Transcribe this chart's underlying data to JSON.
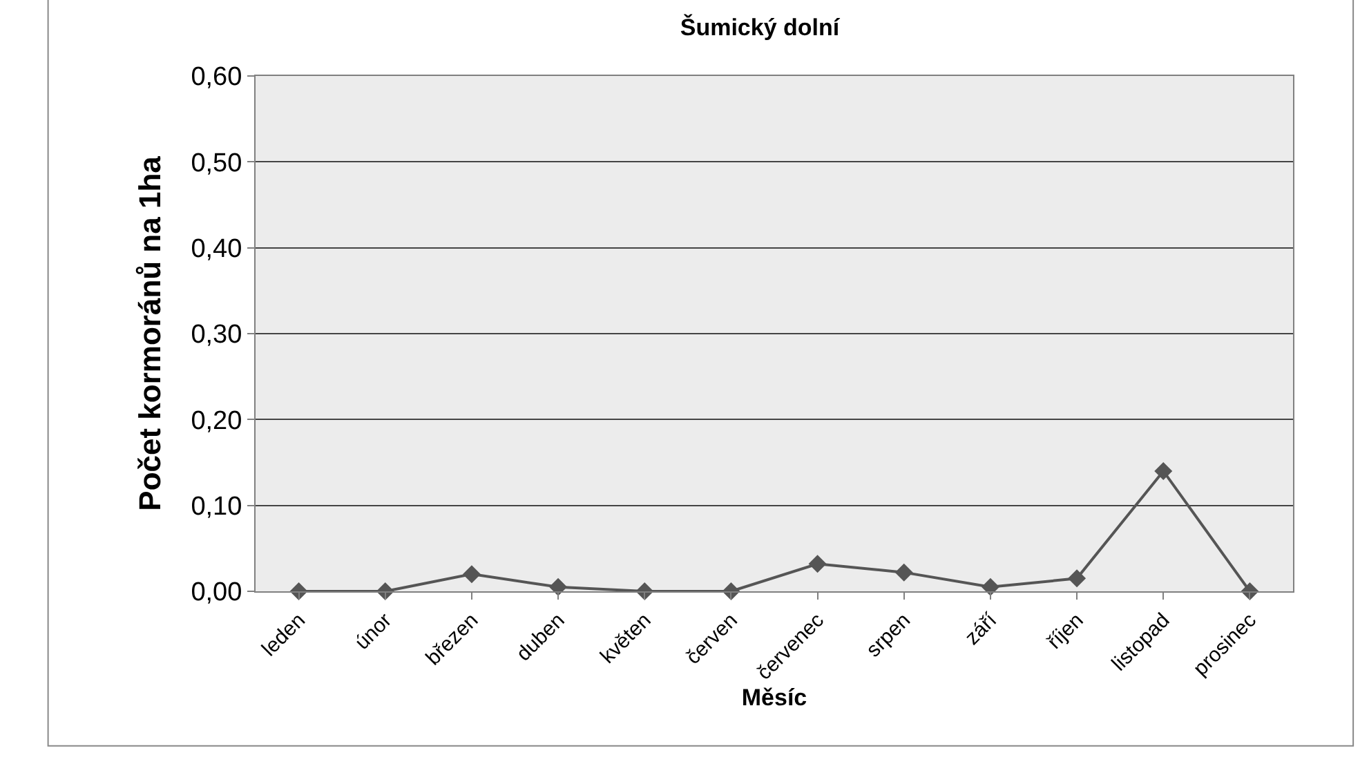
{
  "chart_data": {
    "type": "line",
    "title": "Šumický dolní",
    "xlabel": "Měsíc",
    "ylabel": "Počet kormoránů na 1ha",
    "categories": [
      "leden",
      "únor",
      "březen",
      "duben",
      "květen",
      "červen",
      "červenec",
      "srpen",
      "září",
      "říjen",
      "listopad",
      "prosinec"
    ],
    "series": [
      {
        "color": "#555555",
        "values": [
          0,
          0,
          0.02,
          0.005,
          0,
          0,
          0.032,
          0.022,
          0.005,
          0.015,
          0.14,
          0
        ]
      }
    ],
    "ylim": [
      0,
      0.6
    ],
    "yticks": [
      {
        "value": 0,
        "label": "0,00"
      },
      {
        "value": 0.1,
        "label": "0,10"
      },
      {
        "value": 0.2,
        "label": "0,20"
      },
      {
        "value": 0.3,
        "label": "0,30"
      },
      {
        "value": 0.4,
        "label": "0,40"
      },
      {
        "value": 0.5,
        "label": "0,50"
      },
      {
        "value": 0.6,
        "label": "0,60"
      }
    ],
    "grid": "y",
    "legend": false,
    "marker": "diamond",
    "line_style": "solid"
  }
}
